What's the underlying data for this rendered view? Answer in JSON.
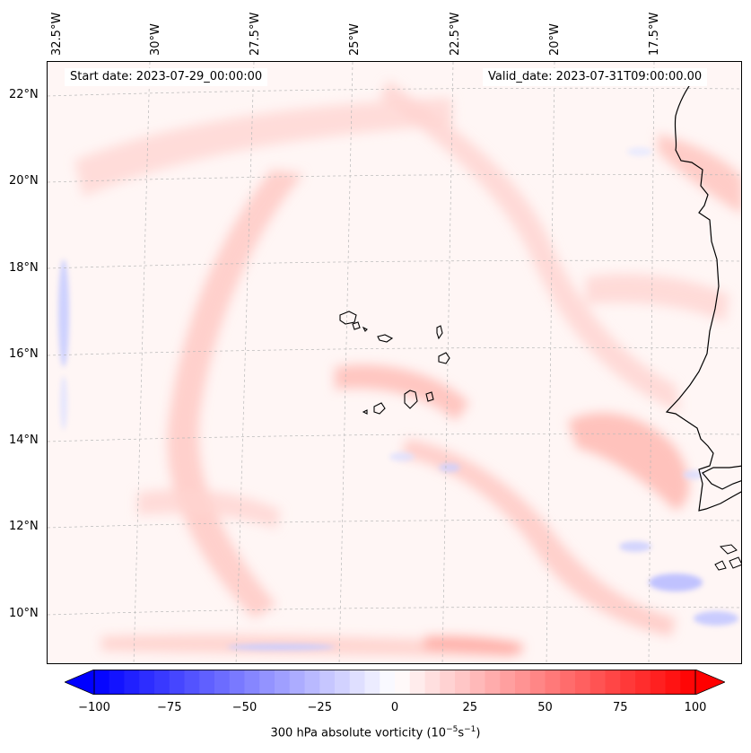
{
  "map": {
    "start_date_label": "Start date: 2023-07-29_00:00:00",
    "valid_date_label": "Valid_date: 2023-07-31T09:00:00.00",
    "longitude_labels": [
      "32.5°W",
      "30°W",
      "27.5°W",
      "25°W",
      "22.5°W",
      "20°W",
      "17.5°W"
    ],
    "latitude_labels": [
      "22°N",
      "20°N",
      "18°N",
      "16°N",
      "14°N",
      "12°N",
      "10°N"
    ],
    "field": "300 hPa absolute vorticity"
  },
  "colorbar": {
    "ticks": [
      "−100",
      "−75",
      "−50",
      "−25",
      "0",
      "25",
      "50",
      "75",
      "100"
    ],
    "min": -100,
    "max": 100,
    "step": 5,
    "title_prefix": "300 hPa absolute vorticity (10",
    "title_exp1": "−5",
    "title_mid": "s",
    "title_exp2": "−1",
    "title_suffix": ")",
    "color_negative": "#0000ff",
    "color_positive": "#ff0000"
  }
}
